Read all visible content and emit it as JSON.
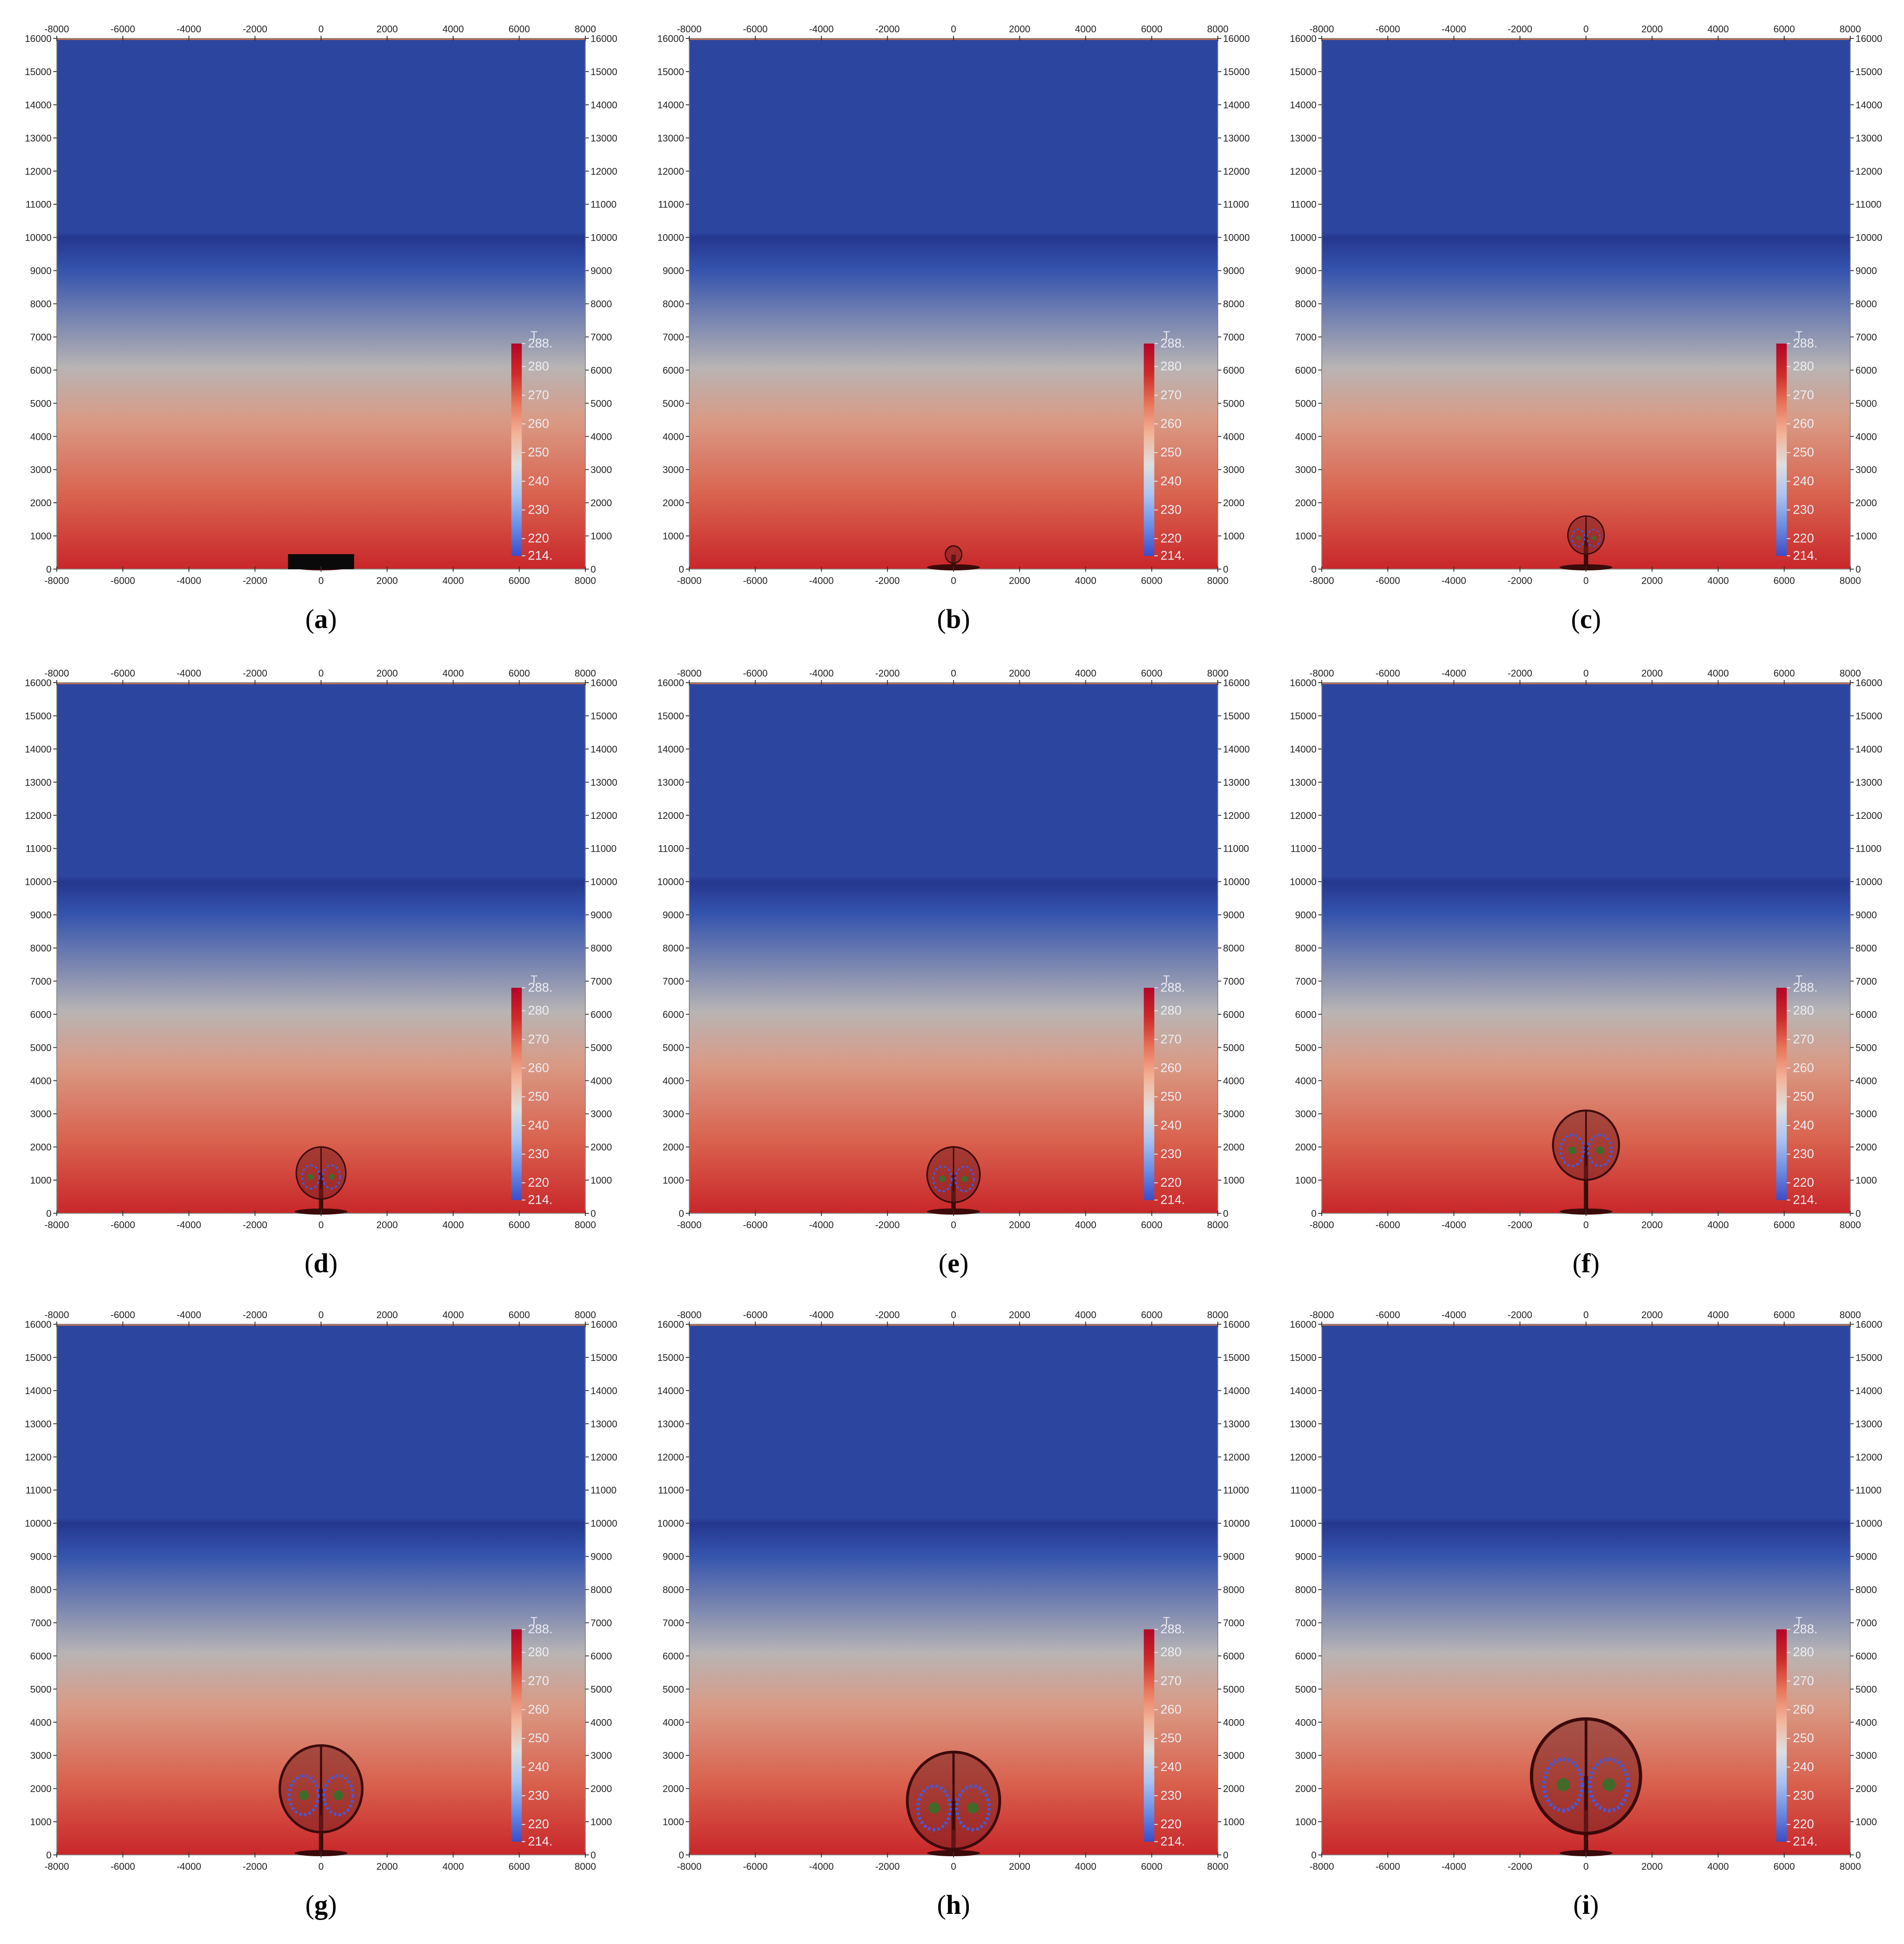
{
  "figure": {
    "panel_labels": [
      "a",
      "b",
      "c",
      "d",
      "e",
      "f",
      "g",
      "h",
      "i"
    ]
  },
  "chart_data": {
    "type": "heatmap",
    "panels": 9,
    "x_ticks": [
      "-8000",
      "-6000",
      "-4000",
      "-2000",
      "0",
      "2000",
      "4000",
      "6000",
      "8000"
    ],
    "y_ticks": [
      "0",
      "1000",
      "2000",
      "3000",
      "4000",
      "5000",
      "6000",
      "7000",
      "8000",
      "9000",
      "10000",
      "11000",
      "12000",
      "13000",
      "14000",
      "15000",
      "16000"
    ],
    "xlim": [
      -8000,
      8000
    ],
    "ylim": [
      0,
      16000
    ],
    "colorbar": {
      "title": "T",
      "ticks": [
        "288.",
        "280",
        "270",
        "260",
        "250",
        "240",
        "230",
        "220",
        "214."
      ],
      "range": [
        214,
        288
      ],
      "colors": [
        "#3d4cc8",
        "#6b8ee6",
        "#a9c4f2",
        "#dedede",
        "#f3b49a",
        "#e8765a",
        "#cf2a2a",
        "#b40426"
      ]
    },
    "field_colors": {
      "stratosphere": "#2c46a0",
      "tropopause": "#25378f",
      "mid": "#b8b4b4",
      "surface": "#c9272a",
      "plume": "#3b0a0a"
    },
    "tropopause_height": 10000,
    "plumes": [
      {
        "panel": "a",
        "shape": "source",
        "top": 450,
        "half_width": 1000
      },
      {
        "panel": "b",
        "shape": "bubble",
        "top": 700,
        "half_width": 250
      },
      {
        "panel": "c",
        "shape": "bubble",
        "top": 1600,
        "half_width": 550
      },
      {
        "panel": "d",
        "shape": "bubble",
        "top": 2000,
        "half_width": 750
      },
      {
        "panel": "e",
        "shape": "bubble",
        "top": 2000,
        "half_width": 800
      },
      {
        "panel": "f",
        "shape": "bubble",
        "top": 3100,
        "half_width": 1000
      },
      {
        "panel": "g",
        "shape": "bubble",
        "top": 3300,
        "half_width": 1250
      },
      {
        "panel": "h",
        "shape": "bubble",
        "top": 3100,
        "half_width": 1400
      },
      {
        "panel": "i",
        "shape": "bubble",
        "top": 4100,
        "half_width": 1650
      }
    ]
  }
}
